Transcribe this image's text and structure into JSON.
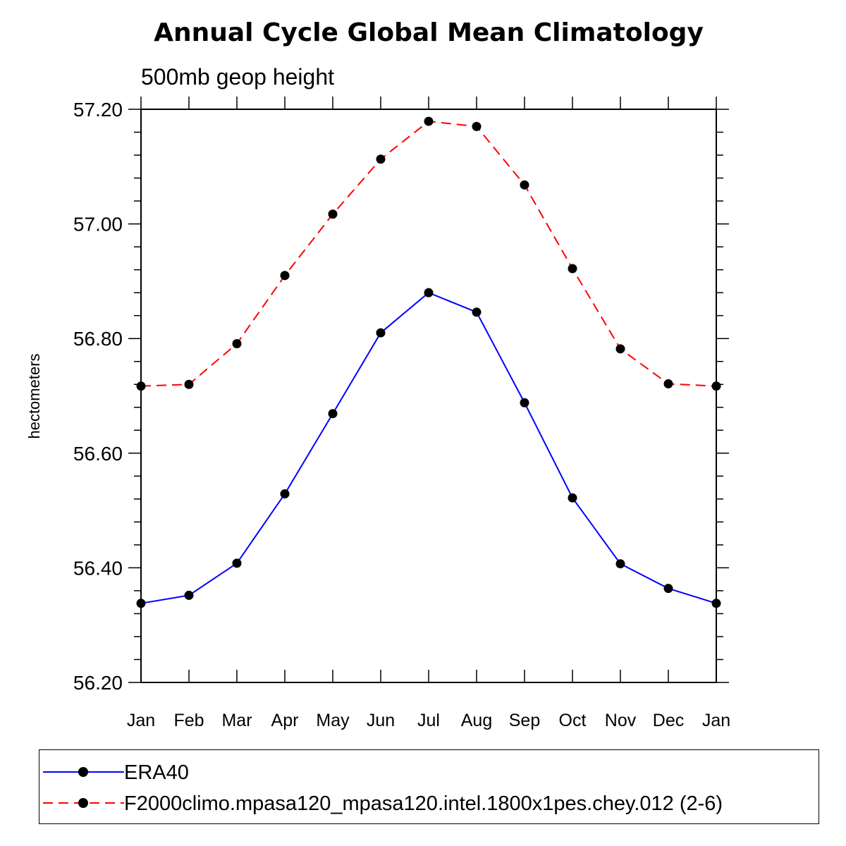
{
  "chart_data": {
    "type": "line",
    "title": "Annual Cycle Global Mean Climatology",
    "subtitle": "500mb geop height",
    "xlabel": "",
    "ylabel": "hectometers",
    "categories": [
      "Jan",
      "Feb",
      "Mar",
      "Apr",
      "May",
      "Jun",
      "Jul",
      "Aug",
      "Sep",
      "Oct",
      "Nov",
      "Dec",
      "Jan"
    ],
    "ylim": [
      56.2,
      57.2
    ],
    "yticks": [
      "56.20",
      "56.40",
      "56.60",
      "56.80",
      "57.00",
      "57.20"
    ],
    "grid": false,
    "legend_position": "bottom",
    "series": [
      {
        "name": "ERA40",
        "color": "#0000ff",
        "line_style": "solid",
        "marker": "filled-circle",
        "values": [
          56.338,
          56.352,
          56.408,
          56.529,
          56.669,
          56.81,
          56.88,
          56.846,
          56.688,
          56.522,
          56.407,
          56.364,
          56.338
        ]
      },
      {
        "name": "F2000climo.mpasa120_mpasa120.intel.1800x1pes.chey.012 (2-6)",
        "color": "#ff0000",
        "line_style": "dashed",
        "marker": "filled-circle",
        "values": [
          56.717,
          56.72,
          56.791,
          56.91,
          57.017,
          57.113,
          57.179,
          57.17,
          57.068,
          56.922,
          56.782,
          56.721,
          56.717
        ]
      }
    ]
  }
}
